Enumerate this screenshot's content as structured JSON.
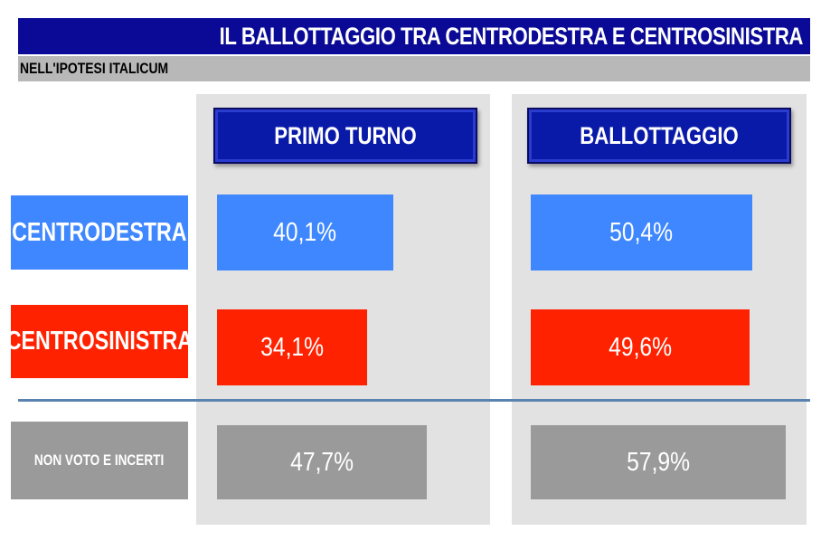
{
  "header": {
    "title": "IL BALLOTTAGGIO TRA CENTRODESTRA E CENTROSINISTRA",
    "subtitle": "NELL'IPOTESI ITALICUM"
  },
  "columns": [
    "PRIMO TURNO",
    "BALLOTTAGGIO"
  ],
  "rows": [
    {
      "label": "CENTRODESTRA",
      "color": "#3f87ff"
    },
    {
      "label": "CENTROSINISTRA",
      "color": "#ff2200"
    },
    {
      "label": "NON VOTO E INCERTI",
      "color": "#9a9a9a"
    }
  ],
  "chart_data": {
    "type": "table",
    "title": "IL BALLOTTAGGIO TRA CENTRODESTRA E CENTROSINISTRA",
    "subtitle": "NELL'IPOTESI ITALICUM",
    "columns": [
      "PRIMO TURNO",
      "BALLOTTAGGIO"
    ],
    "categories": [
      "CENTRODESTRA",
      "CENTROSINISTRA",
      "NON VOTO E INCERTI"
    ],
    "cells": [
      [
        "40,1%",
        "50,4%"
      ],
      [
        "34,1%",
        "49,6%"
      ],
      [
        "47,7%",
        "57,9%"
      ]
    ],
    "values": [
      [
        40.1,
        50.4
      ],
      [
        34.1,
        49.6
      ],
      [
        47.7,
        57.9
      ]
    ]
  }
}
